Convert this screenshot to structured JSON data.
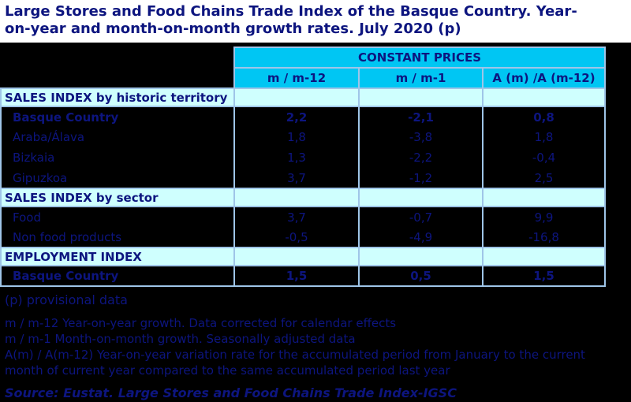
{
  "title_lines": [
    "Large Stores and Food Chains Trade Index of the Basque Country. Year-",
    "on-year and month-on-month growth rates. July 2020 (p)"
  ],
  "table": {
    "group_header": "CONSTANT PRICES",
    "columns": [
      "m / m-12",
      "m / m-1",
      "A (m) /A (m-12)"
    ],
    "sections": [
      {
        "label": "SALES INDEX by historic territory",
        "rows": [
          {
            "label": "Basque Country",
            "bold": true,
            "values": [
              "2,2",
              "-2,1",
              "0,8"
            ]
          },
          {
            "label": "Araba/Álava",
            "bold": false,
            "values": [
              "1,8",
              "-3,8",
              "1,8"
            ]
          },
          {
            "label": "Bizkaia",
            "bold": false,
            "values": [
              "1,3",
              "-2,2",
              "-0,4"
            ]
          },
          {
            "label": "Gipuzkoa",
            "bold": false,
            "values": [
              "3,7",
              "-1,2",
              "2,5"
            ]
          }
        ]
      },
      {
        "label": "SALES INDEX by sector",
        "rows": [
          {
            "label": "Food",
            "bold": false,
            "values": [
              "3,7",
              "-0,7",
              "9,9"
            ]
          },
          {
            "label": "Non food products",
            "bold": false,
            "values": [
              "-0,5",
              "-4,9",
              "-16,8"
            ]
          }
        ]
      },
      {
        "label": "EMPLOYMENT INDEX",
        "rows": [
          {
            "label": "Basque Country",
            "bold": true,
            "values": [
              "1,5",
              "0,5",
              "1,5"
            ]
          }
        ]
      }
    ]
  },
  "footnotes": {
    "provisional": "(p) provisional data",
    "note1": "m / m-12 Year-on-year growth. Data corrected for calendar effects",
    "note2": "m / m-1 Month-on-month growth. Seasonally adjusted data",
    "note3": "A(m) / A(m-12) Year-on-year variation rate for the accumulated period from January to the current month of current year compared to the same accumulated period last year"
  },
  "source": "Source: Eustat. Large Stores and Food Chains Trade Index-IGSC",
  "colors": {
    "navy": "#0d157f",
    "cyan": "#00c6f3",
    "light_cyan": "#cffffe",
    "border": "#9fc5e8",
    "row_background": "#000000",
    "title_background": "#ffffff"
  }
}
